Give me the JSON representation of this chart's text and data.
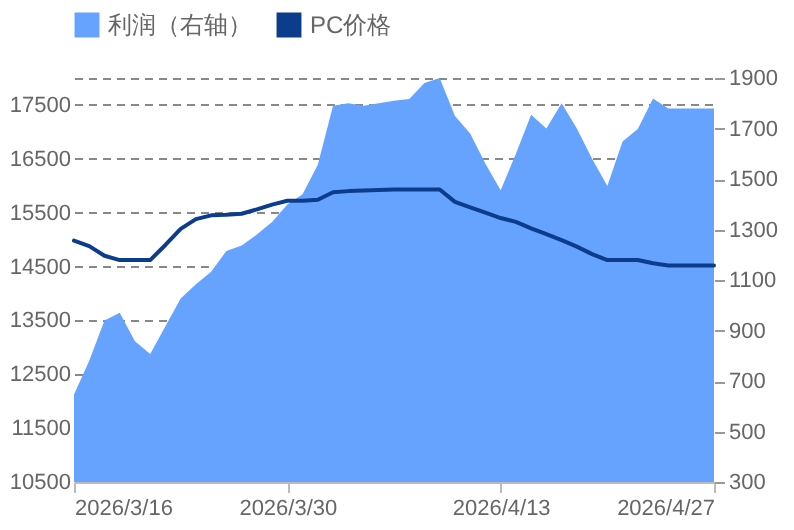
{
  "chart_data": {
    "type": "area",
    "legend": "top",
    "grid": "y",
    "x": [
      "2026-03-16",
      "2026-03-17",
      "2026-03-18",
      "2026-03-19",
      "2026-03-20",
      "2026-03-21",
      "2026-03-22",
      "2026-03-23",
      "2026-03-24",
      "2026-03-25",
      "2026-03-26",
      "2026-03-27",
      "2026-03-28",
      "2026-03-29",
      "2026-03-30",
      "2026-03-31",
      "2026-04-01",
      "2026-04-02",
      "2026-04-03",
      "2026-04-04",
      "2026-04-05",
      "2026-04-06",
      "2026-04-07",
      "2026-04-08",
      "2026-04-09",
      "2026-04-10",
      "2026-04-11",
      "2026-04-12",
      "2026-04-13",
      "2026-04-14",
      "2026-04-15",
      "2026-04-16",
      "2026-04-17",
      "2026-04-18",
      "2026-04-19",
      "2026-04-20",
      "2026-04-21",
      "2026-04-22",
      "2026-04-23",
      "2026-04-24",
      "2026-04-25",
      "2026-04-26",
      "2026-04-27"
    ],
    "series": [
      {
        "name": "利润（右轴）",
        "axis": "y2",
        "color": "#66a3ff",
        "values": [
          647,
          780,
          940,
          970,
          857,
          807,
          917,
          1027,
          1083,
          1133,
          1215,
          1237,
          1280,
          1330,
          1399,
          1440,
          1556,
          1790,
          1800,
          1790,
          1800,
          1810,
          1817,
          1880,
          1900,
          1750,
          1680,
          1560,
          1455,
          1600,
          1754,
          1700,
          1800,
          1700,
          1580,
          1472,
          1649,
          1698,
          1819,
          1779,
          1779,
          1779,
          1779
        ]
      },
      {
        "name": "PC价格",
        "type": "line",
        "color": "#0c3d8c",
        "values": [
          14980,
          14880,
          14700,
          14620,
          14620,
          14620,
          14900,
          15200,
          15380,
          15450,
          15460,
          15480,
          15560,
          15650,
          15720,
          15720,
          15740,
          15880,
          15900,
          15910,
          15920,
          15930,
          15930,
          15930,
          15930,
          15700,
          15600,
          15500,
          15400,
          15330,
          15210,
          15100,
          14990,
          14870,
          14730,
          14620,
          14620,
          14620,
          14560,
          14520,
          14520,
          14520,
          14520
        ]
      }
    ],
    "xlim": [
      "2026-03-16",
      "2026-04-27"
    ],
    "xticks": [
      {
        "value": "2026-03-16",
        "label": "2026/3/16"
      },
      {
        "value": "2026-03-30",
        "label": "2026/3/30"
      },
      {
        "value": "2026-04-13",
        "label": "2026/4/13"
      },
      {
        "value": "2026-04-27",
        "label": "2026/4/27"
      }
    ],
    "ylim": [
      10500,
      18000
    ],
    "yticks": [
      10500,
      11500,
      12500,
      13500,
      14500,
      15500,
      16500,
      17500,
      {
        "value": 18000,
        "label": null
      }
    ],
    "y2lim": [
      300,
      1900
    ],
    "y2ticks": [
      300,
      500,
      700,
      900,
      1100,
      1300,
      1500,
      1700,
      1900
    ]
  }
}
